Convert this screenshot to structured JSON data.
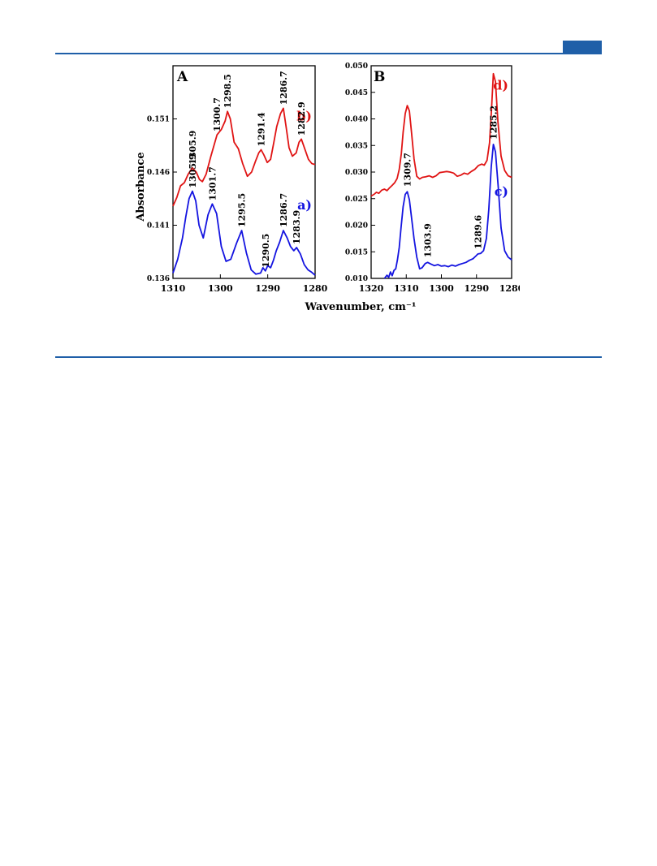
{
  "page": {
    "accent_color": "#1f5fa8"
  },
  "chart_data": [
    {
      "type": "line",
      "panel": "A",
      "xlabel": "Wavenumber, cm⁻¹",
      "ylabel": "Absorbance",
      "xlim": [
        1310,
        1280
      ],
      "ylim": [
        0.136,
        0.156
      ],
      "x_ticks": [
        1310,
        1300,
        1290,
        1280
      ],
      "y_ticks": [
        "0.136",
        "0.141",
        "0.146",
        "0.151"
      ],
      "series": [
        {
          "name": "a)",
          "color": "#1414e0",
          "x": [
            1310,
            1309,
            1308,
            1307.3,
            1306.6,
            1305.9,
            1305.2,
            1304.5,
            1303.6,
            1302.6,
            1301.7,
            1300.8,
            1299.8,
            1298.8,
            1297.8,
            1296.6,
            1295.5,
            1294.5,
            1293.5,
            1292.5,
            1291.5,
            1291.0,
            1290.5,
            1290.0,
            1289.4,
            1288.8,
            1288.2,
            1287.5,
            1286.7,
            1285.9,
            1285.2,
            1284.5,
            1283.9,
            1283.1,
            1282.3,
            1281.5,
            1280.8,
            1280
          ],
          "y": [
            0.1365,
            0.1378,
            0.1398,
            0.1418,
            0.1435,
            0.1442,
            0.1433,
            0.141,
            0.1398,
            0.142,
            0.143,
            0.1421,
            0.139,
            0.1376,
            0.1378,
            0.1393,
            0.1405,
            0.1384,
            0.1368,
            0.1364,
            0.1365,
            0.137,
            0.1367,
            0.1372,
            0.137,
            0.1377,
            0.1386,
            0.1394,
            0.1405,
            0.1398,
            0.139,
            0.1386,
            0.1389,
            0.1383,
            0.1373,
            0.1368,
            0.1366,
            0.1363
          ]
        },
        {
          "name": "b)",
          "color": "#e01414",
          "x": [
            1310,
            1309.2,
            1308.4,
            1307.6,
            1306.8,
            1305.9,
            1305.1,
            1304.4,
            1303.8,
            1303.0,
            1302.0,
            1300.7,
            1299.8,
            1299.0,
            1298.5,
            1297.9,
            1297.1,
            1296.2,
            1295.3,
            1294.3,
            1293.4,
            1292.6,
            1291.9,
            1291.4,
            1290.8,
            1290.1,
            1289.4,
            1288.7,
            1288.1,
            1287.3,
            1286.7,
            1286.1,
            1285.5,
            1284.8,
            1284.0,
            1283.4,
            1282.9,
            1282.2,
            1281.4,
            1280.7,
            1280
          ],
          "y": [
            0.1428,
            0.1436,
            0.1447,
            0.145,
            0.1458,
            0.1464,
            0.146,
            0.1453,
            0.1451,
            0.1458,
            0.1475,
            0.1495,
            0.15,
            0.1508,
            0.1517,
            0.151,
            0.1488,
            0.1482,
            0.1468,
            0.1456,
            0.146,
            0.147,
            0.1478,
            0.1481,
            0.1476,
            0.1469,
            0.1472,
            0.1488,
            0.1503,
            0.1515,
            0.152,
            0.1502,
            0.1483,
            0.1475,
            0.1478,
            0.1488,
            0.1491,
            0.1482,
            0.1472,
            0.1468,
            0.1467
          ]
        }
      ],
      "peak_labels": [
        {
          "series": "b)",
          "x": 1305.9,
          "text": "1305.9"
        },
        {
          "series": "b)",
          "x": 1300.7,
          "text": "1300.7"
        },
        {
          "series": "b)",
          "x": 1298.5,
          "text": "1298.5"
        },
        {
          "series": "b)",
          "x": 1291.4,
          "text": "1291.4"
        },
        {
          "series": "b)",
          "x": 1286.7,
          "text": "1286.7"
        },
        {
          "series": "b)",
          "x": 1282.9,
          "text": "1282.9"
        },
        {
          "series": "a)",
          "x": 1305.9,
          "text": "1305.9"
        },
        {
          "series": "a)",
          "x": 1301.7,
          "text": "1301.7"
        },
        {
          "series": "a)",
          "x": 1295.5,
          "text": "1295.5"
        },
        {
          "series": "a)",
          "x": 1290.5,
          "text": "1290.5"
        },
        {
          "series": "a)",
          "x": 1286.7,
          "text": "1286.7"
        },
        {
          "series": "a)",
          "x": 1283.9,
          "text": "1283.9"
        }
      ],
      "grid": false
    },
    {
      "type": "line",
      "panel": "B",
      "xlabel": "",
      "ylabel": "",
      "xlim": [
        1320,
        1280
      ],
      "ylim": [
        0.01,
        0.05
      ],
      "x_ticks": [
        1320,
        1310,
        1300,
        1290,
        1280
      ],
      "y_ticks": [
        "0.010",
        "0.015",
        "0.020",
        "0.025",
        "0.030",
        "0.035",
        "0.040",
        "0.045",
        "0.050"
      ],
      "series": [
        {
          "name": "c)",
          "color": "#1414e0",
          "x": [
            1316.2,
            1315.5,
            1315.0,
            1314.5,
            1314.0,
            1313.5,
            1313.0,
            1312.5,
            1312.0,
            1311.5,
            1310.9,
            1310.3,
            1309.7,
            1309.1,
            1308.5,
            1307.8,
            1307.0,
            1306.2,
            1305.5,
            1304.6,
            1303.9,
            1303.0,
            1302.0,
            1301.0,
            1300.0,
            1299.0,
            1298.0,
            1297.0,
            1296.0,
            1295.0,
            1294.0,
            1293.0,
            1292.0,
            1291.0,
            1290.2,
            1289.6,
            1288.8,
            1288.0,
            1287.2,
            1286.5,
            1285.8,
            1285.2,
            1284.6,
            1283.8,
            1283.0,
            1282.0,
            1281.0,
            1280
          ],
          "y": [
            0.01,
            0.0106,
            0.0102,
            0.0112,
            0.0105,
            0.0115,
            0.0118,
            0.0135,
            0.0158,
            0.0195,
            0.0235,
            0.0258,
            0.0263,
            0.0248,
            0.0215,
            0.0175,
            0.014,
            0.0118,
            0.012,
            0.0128,
            0.013,
            0.0127,
            0.0124,
            0.0126,
            0.0123,
            0.0124,
            0.0122,
            0.0125,
            0.0123,
            0.0126,
            0.0128,
            0.013,
            0.0134,
            0.0137,
            0.0142,
            0.0146,
            0.0147,
            0.0152,
            0.0175,
            0.023,
            0.031,
            0.0352,
            0.0338,
            0.027,
            0.0195,
            0.0152,
            0.014,
            0.0135
          ]
        },
        {
          "name": "d)",
          "color": "#e01414",
          "x": [
            1320,
            1319.2,
            1318.5,
            1317.8,
            1317.0,
            1316.2,
            1315.5,
            1314.8,
            1314.0,
            1313.3,
            1312.6,
            1312.0,
            1311.4,
            1310.9,
            1310.3,
            1309.7,
            1309.1,
            1308.5,
            1307.8,
            1307.0,
            1306.2,
            1305.4,
            1304.5,
            1303.5,
            1302.5,
            1301.5,
            1300.5,
            1299.5,
            1298.5,
            1297.5,
            1296.5,
            1295.5,
            1294.5,
            1293.5,
            1292.5,
            1291.5,
            1290.5,
            1289.5,
            1288.5,
            1287.8,
            1287.0,
            1286.3,
            1285.7,
            1285.2,
            1284.6,
            1283.9,
            1283.0,
            1282.0,
            1281.0,
            1280
          ],
          "y": [
            0.0255,
            0.0258,
            0.0262,
            0.026,
            0.0266,
            0.0268,
            0.0265,
            0.027,
            0.0275,
            0.028,
            0.0288,
            0.0305,
            0.0335,
            0.0375,
            0.041,
            0.0425,
            0.0415,
            0.0375,
            0.0325,
            0.0292,
            0.0287,
            0.029,
            0.0291,
            0.0293,
            0.029,
            0.0293,
            0.0299,
            0.03,
            0.0301,
            0.03,
            0.0298,
            0.0292,
            0.0294,
            0.0298,
            0.0296,
            0.0301,
            0.0305,
            0.0312,
            0.0315,
            0.0313,
            0.0322,
            0.0355,
            0.042,
            0.0485,
            0.047,
            0.0395,
            0.033,
            0.0303,
            0.0293,
            0.029
          ]
        }
      ],
      "peak_labels": [
        {
          "series": "c)",
          "x": 1309.7,
          "text": "1309.7"
        },
        {
          "series": "c)",
          "x": 1303.9,
          "text": "1303.9"
        },
        {
          "series": "c)",
          "x": 1289.6,
          "text": "1289.6"
        },
        {
          "series": "c)",
          "x": 1285.2,
          "text": "1285.2"
        }
      ],
      "grid": false
    }
  ]
}
